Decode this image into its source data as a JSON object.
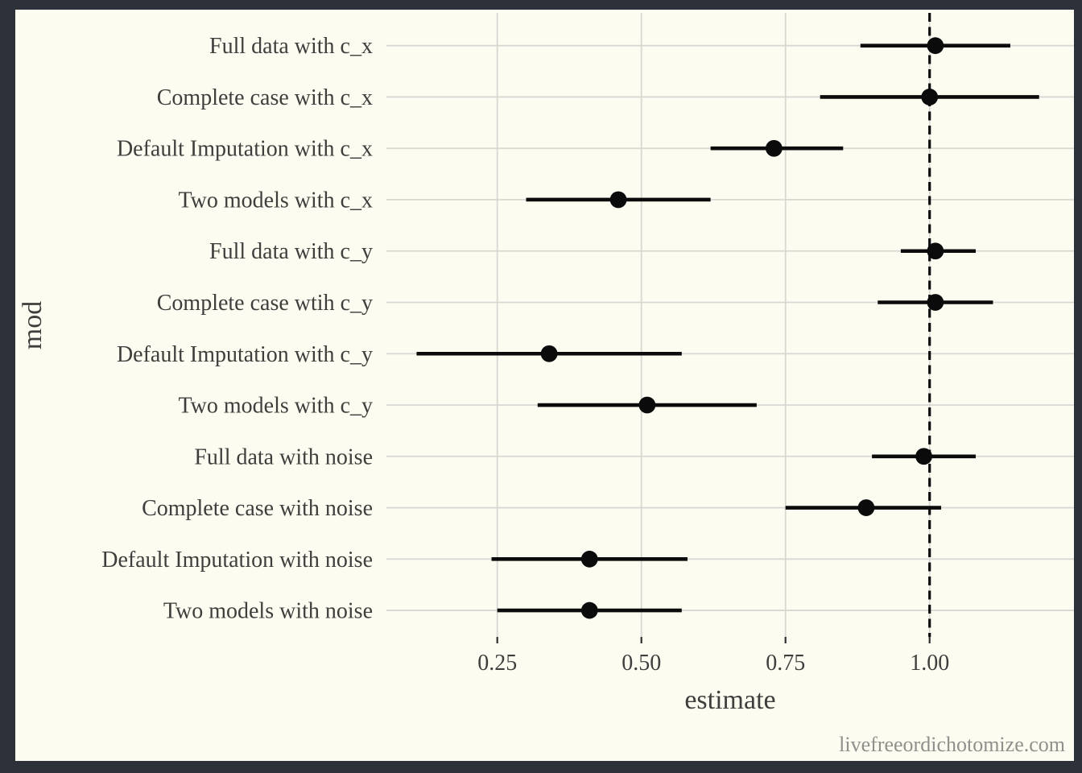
{
  "watermark": "livefreeordichotomize.com",
  "colors": {
    "frame_border": "#2c313a",
    "panel_background": "#FDFCF1",
    "gridline": "#d8d8d2",
    "point_range": "#0b0b0b",
    "reference_line": "#0b0b0b",
    "axis_text": "#3f3e3c",
    "tick_mark": "#2f2f2f",
    "watermark_text": "#8f8f8c"
  },
  "chart_data": {
    "type": "pointrange-forest",
    "title": "",
    "xlabel": "estimate",
    "ylabel": "mod",
    "xlim": [
      0.06,
      1.25
    ],
    "x_ticks": [
      0.25,
      0.5,
      0.75,
      1.0
    ],
    "x_tick_labels": [
      "0.25",
      "0.50",
      "0.75",
      "1.00"
    ],
    "reference_line_x": 1.0,
    "grid": "major gridlines only, horizontal line per category",
    "legend_position": "none",
    "rows": [
      {
        "label": "Full data with c_x",
        "estimate": 1.01,
        "low": 0.88,
        "high": 1.14
      },
      {
        "label": "Complete case with c_x",
        "estimate": 1.0,
        "low": 0.81,
        "high": 1.19
      },
      {
        "label": "Default Imputation with c_x",
        "estimate": 0.73,
        "low": 0.62,
        "high": 0.85
      },
      {
        "label": "Two models with c_x",
        "estimate": 0.46,
        "low": 0.3,
        "high": 0.62
      },
      {
        "label": "Full data with c_y",
        "estimate": 1.01,
        "low": 0.95,
        "high": 1.08
      },
      {
        "label": "Complete case wtih c_y",
        "estimate": 1.01,
        "low": 0.91,
        "high": 1.11
      },
      {
        "label": "Default Imputation with c_y",
        "estimate": 0.34,
        "low": 0.11,
        "high": 0.57
      },
      {
        "label": "Two models with c_y",
        "estimate": 0.51,
        "low": 0.32,
        "high": 0.7
      },
      {
        "label": "Full data with noise",
        "estimate": 0.99,
        "low": 0.9,
        "high": 1.08
      },
      {
        "label": "Complete case with noise",
        "estimate": 0.89,
        "low": 0.75,
        "high": 1.02
      },
      {
        "label": "Default Imputation with noise",
        "estimate": 0.41,
        "low": 0.24,
        "high": 0.58
      },
      {
        "label": "Two models with noise",
        "estimate": 0.41,
        "low": 0.25,
        "high": 0.57
      }
    ]
  }
}
